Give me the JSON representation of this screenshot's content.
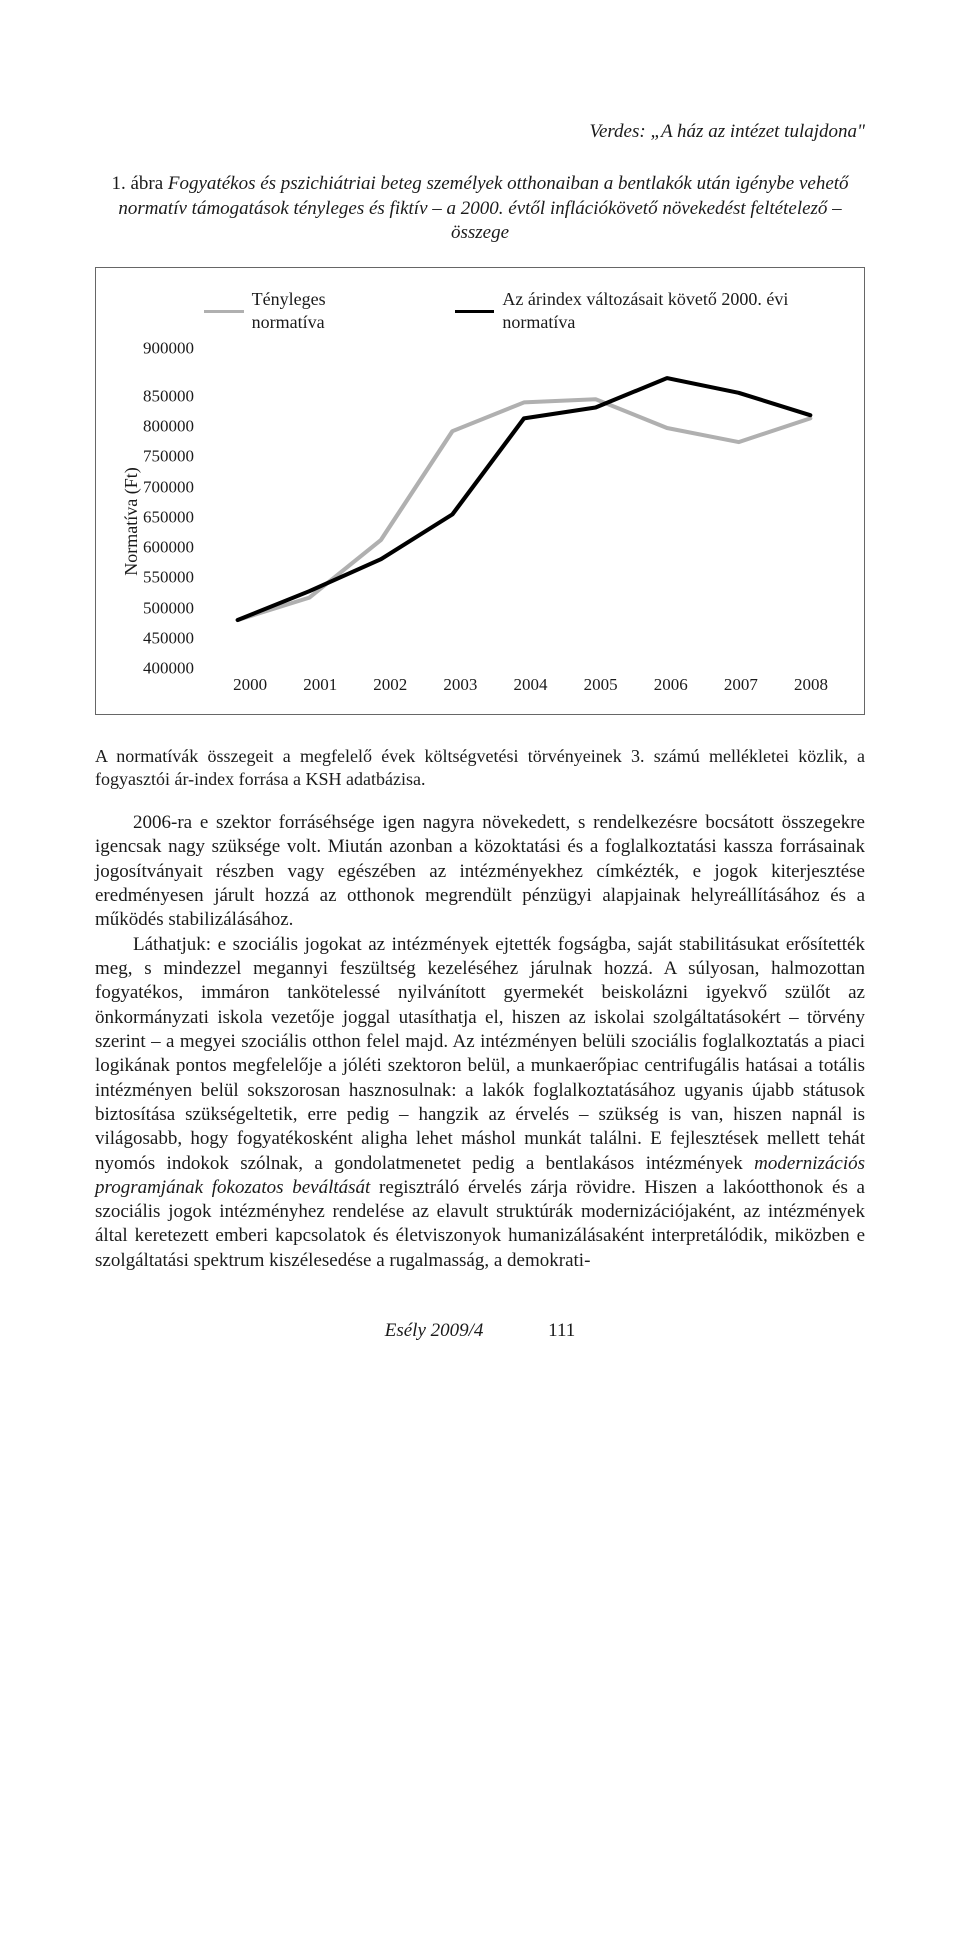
{
  "running_head": "Verdes: „A ház az intézet tulajdona\"",
  "figure": {
    "caption_lead": "1. ábra ",
    "caption_text": "Fogyatékos és pszichiátriai beteg személyek otthonaiban a bentlakók után igénybe vehető normatív támogatások tényleges és fiktív – a 2000. évtől inflációkövető növekedést feltételező – összege",
    "legend": [
      {
        "label": "Tényleges normatíva",
        "color": "#b0b0b0"
      },
      {
        "label": "Az árindex változásait követő 2000. évi normatíva",
        "color": "#000000"
      }
    ],
    "ylabel": "Normatíva (Ft)",
    "ylim": [
      400000,
      900000
    ],
    "yticks": [
      900000,
      850000,
      800000,
      750000,
      700000,
      650000,
      600000,
      550000,
      500000,
      450000,
      400000
    ],
    "xticks": [
      "2000",
      "2001",
      "2002",
      "2003",
      "2004",
      "2005",
      "2006",
      "2007",
      "2008"
    ],
    "series": {
      "gray": {
        "color": "#b0b0b0",
        "width": 4,
        "values": [
          475000,
          510000,
          600000,
          770000,
          815000,
          820000,
          775000,
          753000,
          790000
        ]
      },
      "black": {
        "color": "#000000",
        "width": 4,
        "values": [
          475000,
          520000,
          570000,
          640000,
          790000,
          807000,
          853000,
          830000,
          795000
        ]
      }
    },
    "background_color": "#ffffff",
    "label_fontsize": 18,
    "tick_fontsize": 17
  },
  "footnote": "A normatívák összegeit a megfelelő évek költségvetési törvényeinek 3. számú mellékletei közlik, a fogyasztói ár-index forrása a KSH adatbázisa.",
  "para1": "2006-ra e szektor forráséhsége igen nagyra növekedett, s rendelkezésre bocsátott összegekre igencsak nagy szüksége volt. Miután azonban a közoktatási és a foglalkoztatási kassza forrásainak jogosítványait részben vagy egészében az intézményekhez címkézték, e jogok kiterjesztése eredményesen járult hozzá az otthonok megrendült pénzügyi alapjainak helyreállításához és a működés stabilizálásához.",
  "para2a": "Láthatjuk: e szociális jogokat az intézmények ejtették fogságba, saját stabilitásukat erősítették meg, s mindezzel megannyi feszültség kezeléséhez járulnak hozzá. A súlyosan, halmozottan fogyatékos, immáron tankötelessé nyilvánított gyermekét beiskolázni igyekvő szülőt az önkormányzati iskola vezetője joggal utasíthatja el, hiszen az iskolai szolgáltatásokért – törvény szerint – a megyei szociális otthon felel majd. Az intézményen belüli szociális foglalkoztatás a piaci logikának pontos megfelelője a jóléti szektoron belül, a munkaerőpiac centrifugális hatásai a totális intézményen belül sokszorosan hasznosulnak: a lakók foglalkoztatásához ugyanis újabb státusok biztosítása szükségeltetik, erre pedig – hangzik az érvelés – szükség is van, hiszen napnál is világosabb, hogy fogyatékosként aligha lehet máshol munkát találni. E fejlesztések mellett tehát nyomós indokok szólnak, a gondolatmenetet pedig a bentlakásos intézmények ",
  "para2_it": "modernizációs programjának fokozatos beváltását",
  "para2b": " regisztráló érvelés zárja rövidre. Hiszen a lakóotthonok és a szociális jogok intézményhez rendelése az elavult struktúrák modernizációjaként, az intézmények által keretezett emberi kapcsolatok és életviszonyok humanizálásaként interpretálódik, miközben e szolgáltatási spektrum kiszélesedése a rugalmasság, a demokrati-",
  "footer": {
    "journal": "Esély 2009/4",
    "page": "111"
  }
}
